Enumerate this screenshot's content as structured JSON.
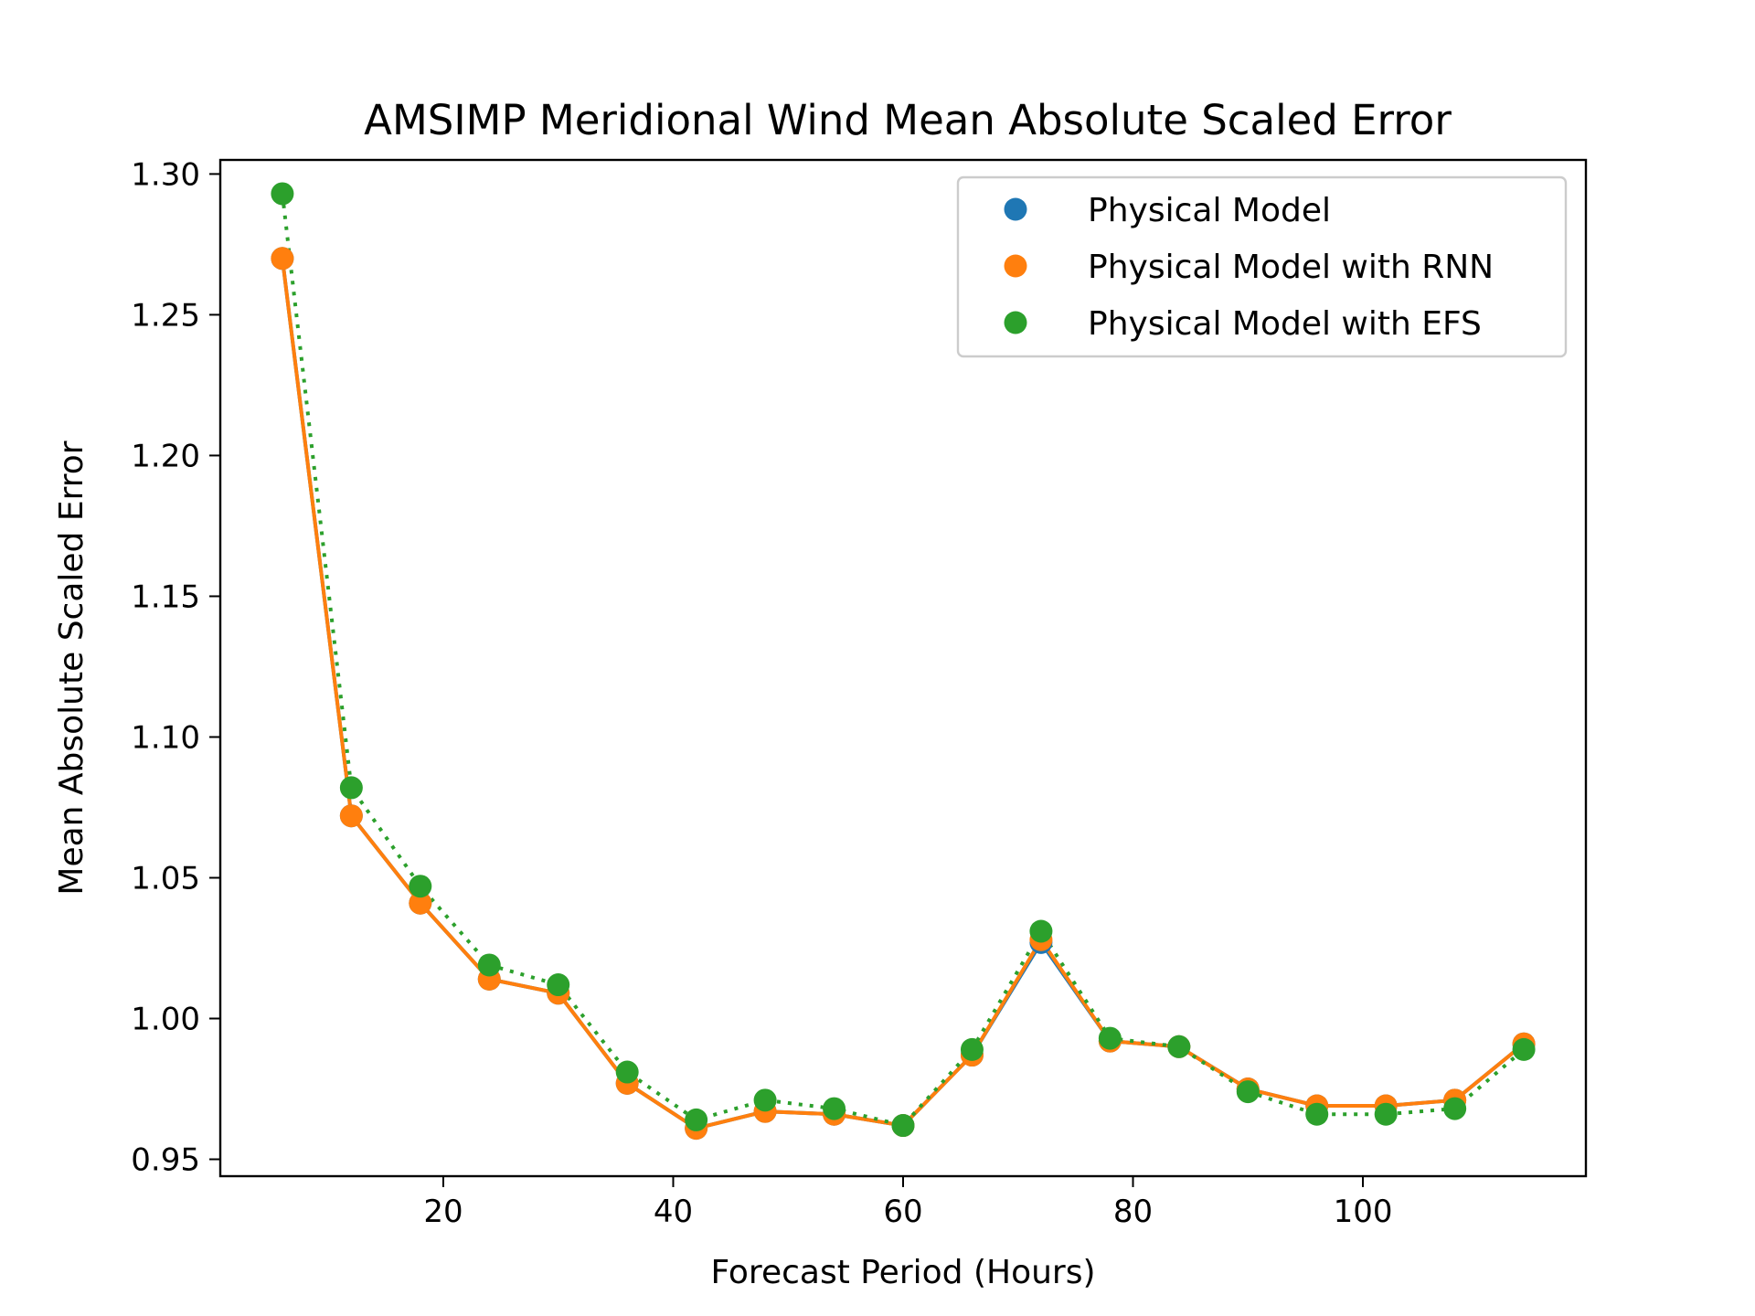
{
  "chart_data": {
    "type": "line",
    "title": "AMSIMP Meridional Wind Mean Absolute Scaled Error",
    "xlabel": "Forecast Period (Hours)",
    "ylabel": "Mean Absolute Scaled Error",
    "xlim": [
      0.6,
      119.4
    ],
    "ylim": [
      0.944,
      1.305
    ],
    "xticks": [
      20,
      40,
      60,
      80,
      100
    ],
    "yticks": [
      0.95,
      1.0,
      1.05,
      1.1,
      1.15,
      1.2,
      1.25,
      1.3
    ],
    "xtick_labels": [
      "20",
      "40",
      "60",
      "80",
      "100"
    ],
    "ytick_labels": [
      "0.95",
      "1.00",
      "1.05",
      "1.10",
      "1.15",
      "1.20",
      "1.25",
      "1.30"
    ],
    "grid": false,
    "legend_position": "upper right",
    "x": [
      6,
      12,
      18,
      24,
      30,
      36,
      42,
      48,
      54,
      60,
      66,
      72,
      78,
      84,
      90,
      96,
      102,
      108,
      114
    ],
    "series": [
      {
        "name": "Physical Model",
        "color": "#1f77b4",
        "line_style": "solid",
        "values": [
          1.27,
          1.072,
          1.041,
          1.014,
          1.009,
          0.977,
          0.961,
          0.967,
          0.966,
          0.962,
          0.987,
          1.027,
          0.992,
          0.99,
          0.975,
          0.969,
          0.969,
          0.971,
          0.991
        ]
      },
      {
        "name": "Physical Model with RNN",
        "color": "#ff7f0e",
        "line_style": "solid",
        "values": [
          1.27,
          1.072,
          1.041,
          1.014,
          1.009,
          0.977,
          0.961,
          0.967,
          0.966,
          0.962,
          0.987,
          1.028,
          0.992,
          0.99,
          0.975,
          0.969,
          0.969,
          0.971,
          0.991
        ]
      },
      {
        "name": "Physical Model with EFS",
        "color": "#2ca02c",
        "line_style": "dotted",
        "values": [
          1.293,
          1.082,
          1.047,
          1.019,
          1.012,
          0.981,
          0.964,
          0.971,
          0.968,
          0.962,
          0.989,
          1.031,
          0.993,
          0.99,
          0.974,
          0.966,
          0.966,
          0.968,
          0.989
        ]
      }
    ]
  }
}
